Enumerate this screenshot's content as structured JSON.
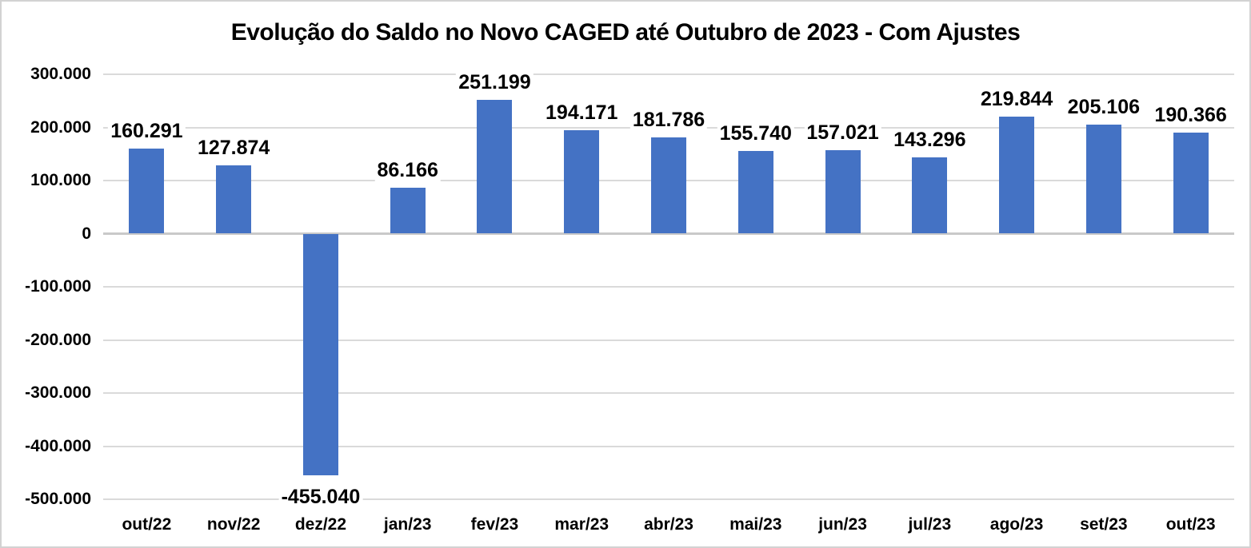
{
  "chart_data": {
    "type": "bar",
    "title": "Evolução do Saldo no Novo CAGED até Outubro de 2023 - Com Ajustes",
    "categories": [
      "out/22",
      "nov/22",
      "dez/22",
      "jan/23",
      "fev/23",
      "mar/23",
      "abr/23",
      "mai/23",
      "jun/23",
      "jul/23",
      "ago/23",
      "set/23",
      "out/23"
    ],
    "values": [
      160291,
      127874,
      -455040,
      86166,
      251199,
      194171,
      181786,
      155740,
      157021,
      143296,
      219844,
      205106,
      190366
    ],
    "value_labels": [
      "160.291",
      "127.874",
      "-455.040",
      "86.166",
      "251.199",
      "194.171",
      "181.786",
      "155.740",
      "157.021",
      "143.296",
      "219.844",
      "205.106",
      "190.366"
    ],
    "xlabel": "",
    "ylabel": "",
    "ylim": [
      -500000,
      300000
    ],
    "y_tick_step": 100000,
    "y_tick_labels": [
      "300.000",
      "200.000",
      "100.000",
      "0",
      "-100.000",
      "-200.000",
      "-300.000",
      "-400.000",
      "-500.000"
    ],
    "y_tick_values": [
      300000,
      200000,
      100000,
      0,
      -100000,
      -200000,
      -300000,
      -400000,
      -500000
    ],
    "grid": true,
    "legend": "none",
    "colors": {
      "bar": "#4472C4",
      "gridline": "#DADADA",
      "zero_axis_line": "#C9C9C9",
      "text": "#000000",
      "frame_border": "#D2D2D2",
      "background": "#FFFFFF"
    }
  }
}
